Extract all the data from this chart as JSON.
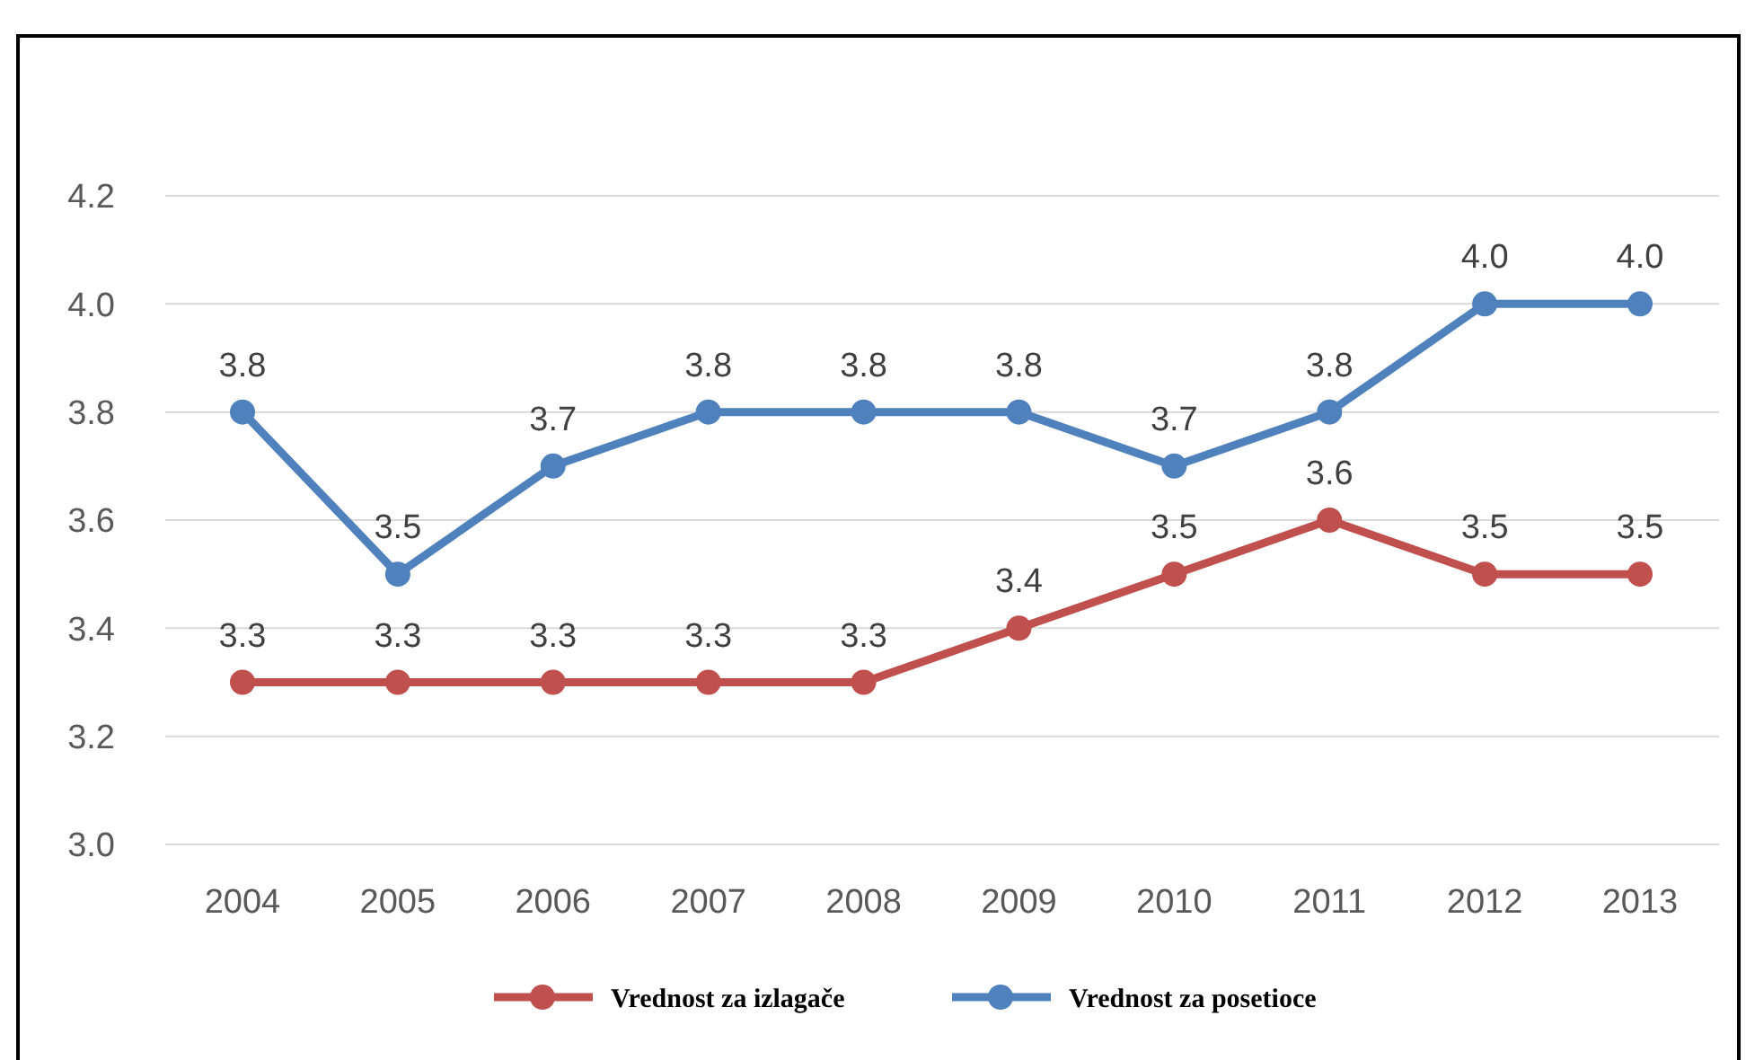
{
  "chart_data": {
    "type": "line",
    "categories": [
      "2004",
      "2005",
      "2006",
      "2007",
      "2008",
      "2009",
      "2010",
      "2011",
      "2012",
      "2013"
    ],
    "series": [
      {
        "name": "Vrednost za izlagače",
        "color": "#c0504d",
        "values": [
          3.3,
          3.3,
          3.3,
          3.3,
          3.3,
          3.4,
          3.5,
          3.6,
          3.5,
          3.5
        ],
        "value_labels": [
          "3.3",
          "3.3",
          "3.3",
          "3.3",
          "3.3",
          "3.4",
          "3.5",
          "3.6",
          "3.5",
          "3.5"
        ]
      },
      {
        "name": "Vrednost za posetioce",
        "color": "#4f81bd",
        "values": [
          3.8,
          3.5,
          3.7,
          3.8,
          3.8,
          3.8,
          3.7,
          3.8,
          4.0,
          4.0
        ],
        "value_labels": [
          "3.8",
          "3.5",
          "3.7",
          "3.8",
          "3.8",
          "3.8",
          "3.7",
          "3.8",
          "4.0",
          "4.0"
        ]
      }
    ],
    "ylim": [
      3.0,
      4.2
    ],
    "yticks": [
      {
        "value": 3.0,
        "label": "3.0"
      },
      {
        "value": 3.2,
        "label": "3.2"
      },
      {
        "value": 3.4,
        "label": "3.4"
      },
      {
        "value": 3.6,
        "label": "3.6"
      },
      {
        "value": 3.8,
        "label": "3.8"
      },
      {
        "value": 4.0,
        "label": "4.0"
      },
      {
        "value": 4.2,
        "label": "4.2"
      }
    ],
    "grid": "y",
    "legend": "bottom",
    "marker": "circle",
    "line_style": "solid"
  }
}
